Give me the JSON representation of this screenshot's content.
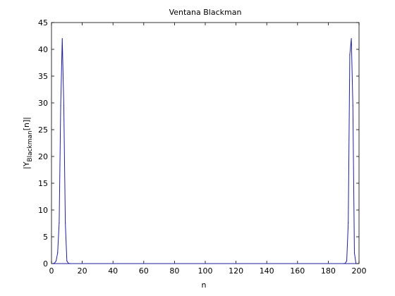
{
  "chart_data": {
    "type": "line",
    "title": "Ventana Blackman",
    "xlabel": "n",
    "ylabel_main": "|Y",
    "ylabel_sub": "Blackman",
    "ylabel_tail": "[n]|",
    "xlim": [
      0,
      200
    ],
    "ylim": [
      0,
      45
    ],
    "xticks": [
      0,
      20,
      40,
      60,
      80,
      100,
      120,
      140,
      160,
      180,
      200
    ],
    "yticks": [
      0,
      5,
      10,
      15,
      20,
      25,
      30,
      35,
      40,
      45
    ],
    "grid": false,
    "series": [
      {
        "color": "#1f1f9f",
        "x": [
          1,
          2,
          3,
          4,
          5,
          6,
          7,
          8,
          9,
          10,
          11,
          12,
          190,
          191,
          192,
          193,
          194,
          195,
          196,
          197,
          198
        ],
        "y": [
          0,
          0.1,
          0.5,
          2.0,
          7.6,
          29.5,
          42,
          29.5,
          7.6,
          0.5,
          0.05,
          0,
          0,
          0.05,
          0.5,
          7.6,
          39,
          42,
          29.5,
          2.0,
          0
        ]
      }
    ]
  }
}
